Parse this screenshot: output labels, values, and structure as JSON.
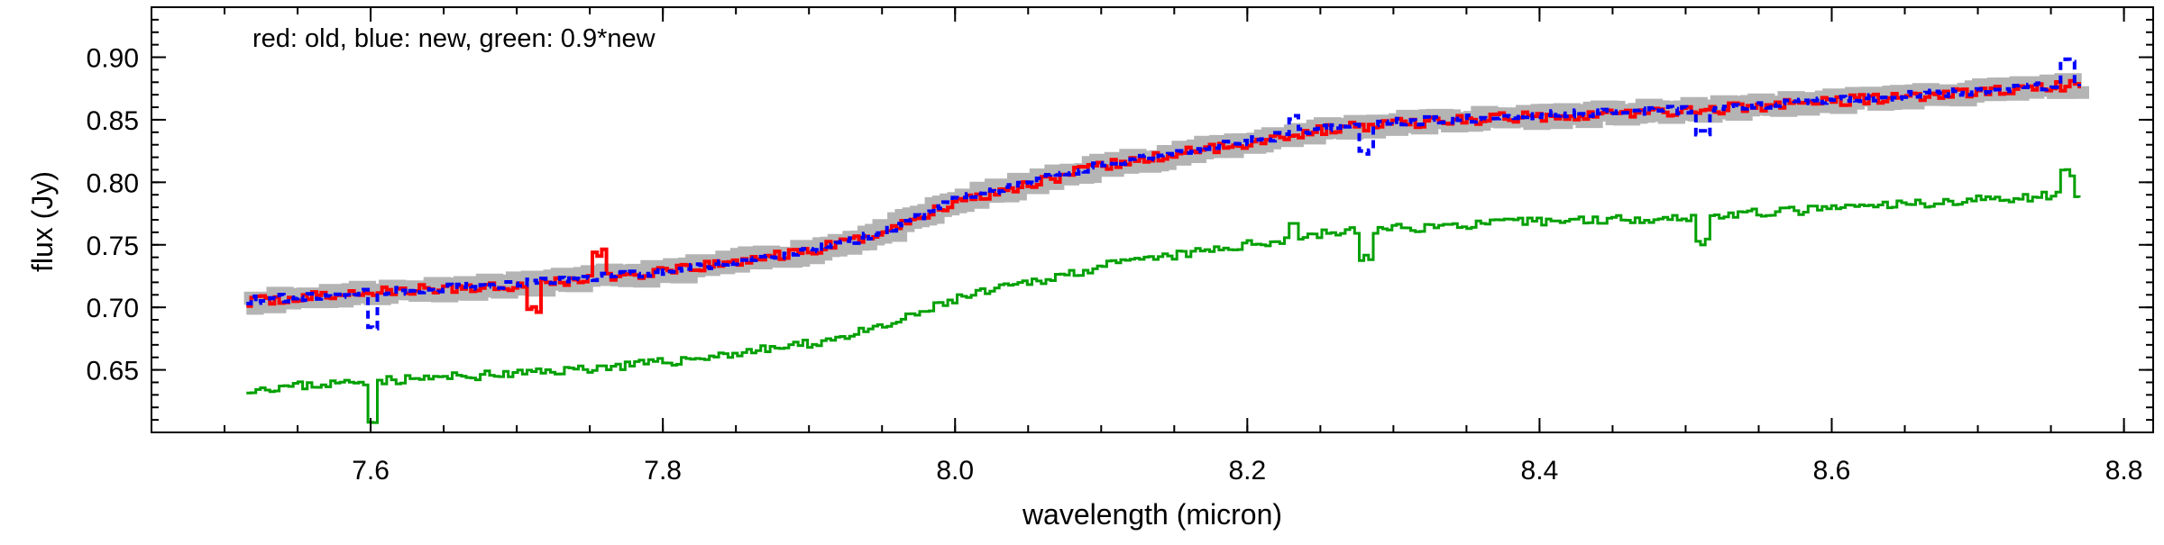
{
  "chart_data": {
    "type": "line",
    "title": "",
    "annotation": "red: old, blue: new, green: 0.9*new",
    "xlabel": "wavelength (micron)",
    "ylabel": "flux (Jy)",
    "xlim": [
      7.45,
      8.82
    ],
    "ylim": [
      0.6,
      0.94
    ],
    "xticks": [
      "7.6",
      "7.8",
      "8.0",
      "8.2",
      "8.4",
      "8.6",
      "8.8"
    ],
    "yticks": [
      "0.65",
      "0.70",
      "0.75",
      "0.80",
      "0.85",
      "0.90"
    ],
    "grid": false,
    "legend": "none",
    "series": [
      {
        "color": "#b4b4b4",
        "style": "thick-steps",
        "x": [
          7.52,
          7.6,
          7.7,
          7.8,
          7.9,
          7.95,
          8.0,
          8.1,
          8.2,
          8.25,
          8.3,
          8.4,
          8.5,
          8.6,
          8.7,
          8.77
        ],
        "y": [
          0.705,
          0.712,
          0.718,
          0.728,
          0.745,
          0.76,
          0.785,
          0.813,
          0.832,
          0.842,
          0.847,
          0.853,
          0.857,
          0.865,
          0.872,
          0.878
        ]
      },
      {
        "color": "#ff0000",
        "style": "solid-steps",
        "x": [
          7.52,
          7.6,
          7.7,
          7.8,
          7.9,
          7.95,
          8.0,
          8.1,
          8.2,
          8.25,
          8.3,
          8.4,
          8.5,
          8.6,
          8.7,
          8.77
        ],
        "y": [
          0.705,
          0.712,
          0.718,
          0.728,
          0.745,
          0.76,
          0.785,
          0.813,
          0.832,
          0.842,
          0.847,
          0.853,
          0.857,
          0.865,
          0.872,
          0.878
        ]
      },
      {
        "color": "#0000ff",
        "style": "dashed",
        "x": [
          7.52,
          7.6,
          7.7,
          7.8,
          7.9,
          7.95,
          8.0,
          8.1,
          8.2,
          8.25,
          8.3,
          8.4,
          8.5,
          8.6,
          8.7,
          8.77
        ],
        "y": [
          0.706,
          0.712,
          0.719,
          0.729,
          0.745,
          0.76,
          0.786,
          0.814,
          0.833,
          0.843,
          0.848,
          0.854,
          0.858,
          0.866,
          0.873,
          0.879
        ]
      },
      {
        "color": "#00a000",
        "style": "solid-steps",
        "x": [
          7.52,
          7.6,
          7.7,
          7.8,
          7.9,
          7.95,
          8.0,
          8.1,
          8.2,
          8.25,
          8.3,
          8.4,
          8.5,
          8.6,
          8.7,
          8.77
        ],
        "y": [
          0.635,
          0.641,
          0.647,
          0.656,
          0.671,
          0.684,
          0.707,
          0.733,
          0.75,
          0.759,
          0.763,
          0.769,
          0.772,
          0.779,
          0.786,
          0.791
        ]
      }
    ],
    "features": [
      {
        "x": 7.6,
        "depth_new": 0.03
      },
      {
        "x": 8.28,
        "depth_new": 0.022
      },
      {
        "x": 8.51,
        "depth_new": 0.02
      },
      {
        "x": 7.71,
        "spike_old": -0.02
      },
      {
        "x": 7.755,
        "spike_old": 0.02
      },
      {
        "x": 8.23,
        "spike_new": 0.012
      },
      {
        "x": 8.76,
        "spike_new": 0.018
      }
    ]
  }
}
